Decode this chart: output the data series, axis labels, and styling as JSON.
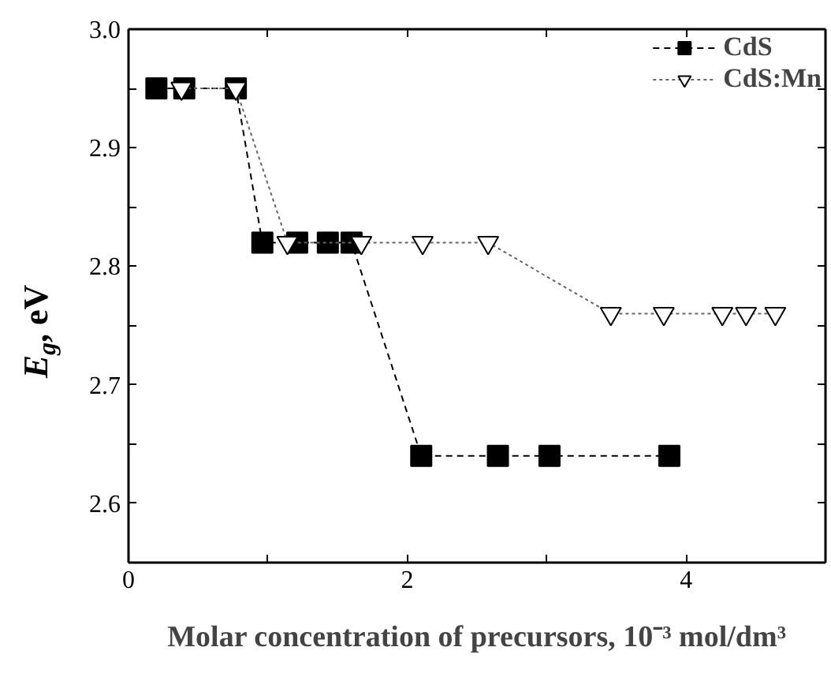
{
  "chart_data": {
    "type": "line",
    "xlabel": "Molar concentration of precursors, 10⁻³ mol/dm³",
    "ylabel": "E$_{g}$, eV",
    "xlim": [
      0,
      5
    ],
    "ylim": [
      2.55,
      3.0
    ],
    "xticks": [
      0,
      {
        "value": 1,
        "label": null
      },
      2,
      {
        "value": 3,
        "label": null
      },
      4
    ],
    "yticks": [
      2.6,
      {
        "value": 2.65,
        "label": null
      },
      2.7,
      {
        "value": 2.75,
        "label": null
      },
      2.8,
      {
        "value": 2.85,
        "label": null
      },
      2.9,
      {
        "value": 2.95,
        "label": null
      },
      {
        "value": 3.0,
        "label": "3.0"
      }
    ],
    "grid": false,
    "legend": "top right",
    "series": [
      {
        "name": "CdS",
        "color": "#000000",
        "marker": "square",
        "line_style": "dashed",
        "x": [
          0.2,
          0.4,
          0.77,
          0.96,
          1.21,
          1.43,
          1.6,
          2.1,
          2.65,
          3.02,
          3.88
        ],
        "values": [
          2.95,
          2.95,
          2.95,
          2.82,
          2.82,
          2.82,
          2.82,
          2.64,
          2.64,
          2.64,
          2.64
        ]
      },
      {
        "name": "CdS:Mn",
        "color": "#000000",
        "marker": "triangle_down",
        "line_style": "dotted",
        "x": [
          0.38,
          0.77,
          1.14,
          1.67,
          2.11,
          2.58,
          3.46,
          3.84,
          4.26,
          4.43,
          4.64
        ],
        "values": [
          2.95,
          2.95,
          2.82,
          2.82,
          2.82,
          2.82,
          2.76,
          2.76,
          2.76,
          2.76,
          2.76
        ]
      }
    ]
  }
}
